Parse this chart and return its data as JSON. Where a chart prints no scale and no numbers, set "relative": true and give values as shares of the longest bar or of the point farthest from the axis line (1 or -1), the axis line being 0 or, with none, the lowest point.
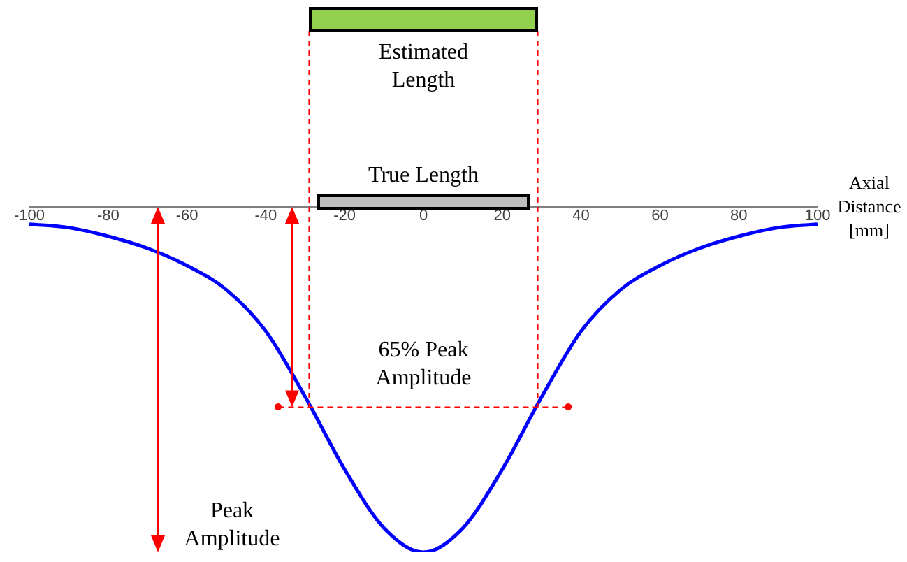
{
  "chart_data": {
    "type": "line",
    "relative": true,
    "xlabel": "Axial Distance [mm]",
    "annotations": [
      "Estimated Length",
      "True Length",
      "65% Peak Amplitude",
      "Peak Amplitude"
    ],
    "xlim": [
      -100,
      100
    ],
    "xticks": [
      -100,
      -80,
      -60,
      -40,
      -20,
      0,
      20,
      40,
      60,
      80,
      100
    ],
    "marker": "none",
    "line_style": "solid",
    "series": [
      {
        "color": "#0000ff",
        "x": [
          -100,
          -90,
          -80,
          -70,
          -60,
          -50,
          -40,
          -30,
          -20,
          -10,
          0,
          10,
          20,
          30,
          40,
          50,
          60,
          70,
          80,
          90,
          100
        ],
        "values": [
          -0.05,
          -0.06,
          -0.085,
          -0.12,
          -0.17,
          -0.24,
          -0.36,
          -0.55,
          -0.76,
          -0.93,
          -1,
          -0.93,
          -0.76,
          -0.55,
          -0.36,
          -0.24,
          -0.17,
          -0.12,
          -0.085,
          -0.06,
          -0.05
        ]
      }
    ],
    "ref_lines": [
      {
        "axis": "x",
        "value": -29,
        "color": "#ff0000",
        "line_style": "dashed"
      },
      {
        "axis": "x",
        "value": 29,
        "color": "#ff0000",
        "line_style": "dashed"
      },
      {
        "axis": "y",
        "value": -0.58,
        "color": "#ff0000",
        "line_style": "dashed"
      }
    ]
  }
}
